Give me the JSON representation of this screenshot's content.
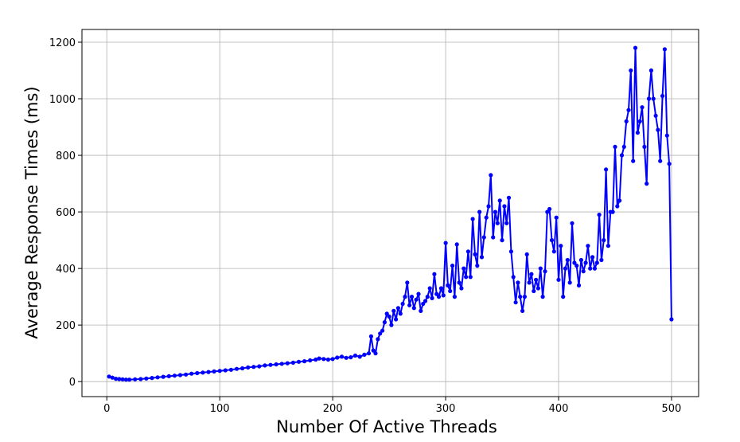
{
  "chart_data": {
    "type": "line",
    "title": "",
    "xlabel": "Number Of Active Threads",
    "ylabel": "Average Response Times (ms)",
    "xlim": [
      -22,
      524
    ],
    "ylim": [
      -53,
      1245
    ],
    "xticks": [
      0,
      100,
      200,
      300,
      400,
      500
    ],
    "yticks": [
      0,
      200,
      400,
      600,
      800,
      1000,
      1200
    ],
    "grid": true,
    "legend": "none",
    "series": [
      {
        "color": "#0000ff",
        "marker": "circle",
        "x": [
          2,
          5,
          8,
          11,
          14,
          17,
          20,
          25,
          30,
          35,
          40,
          45,
          50,
          55,
          60,
          65,
          70,
          75,
          80,
          85,
          90,
          95,
          100,
          105,
          110,
          115,
          120,
          125,
          130,
          135,
          140,
          145,
          150,
          155,
          160,
          165,
          170,
          175,
          180,
          185,
          188,
          192,
          196,
          200,
          204,
          208,
          212,
          216,
          220,
          224,
          228,
          232,
          234,
          236,
          238,
          240,
          242,
          244,
          246,
          248,
          250,
          252,
          254,
          256,
          258,
          260,
          262,
          264,
          266,
          268,
          270,
          272,
          274,
          276,
          278,
          280,
          282,
          284,
          286,
          288,
          290,
          292,
          294,
          296,
          298,
          300,
          302,
          304,
          306,
          308,
          310,
          312,
          314,
          316,
          318,
          320,
          322,
          324,
          326,
          328,
          330,
          332,
          334,
          336,
          338,
          340,
          342,
          344,
          346,
          348,
          350,
          352,
          354,
          356,
          358,
          360,
          362,
          364,
          366,
          368,
          370,
          372,
          374,
          376,
          378,
          380,
          382,
          384,
          386,
          388,
          390,
          392,
          394,
          396,
          398,
          400,
          402,
          404,
          406,
          408,
          410,
          412,
          414,
          416,
          418,
          420,
          422,
          424,
          426,
          428,
          430,
          432,
          434,
          436,
          438,
          440,
          442,
          444,
          446,
          448,
          450,
          452,
          454,
          456,
          458,
          460,
          462,
          464,
          466,
          468,
          470,
          472,
          474,
          476,
          478,
          480,
          482,
          484,
          486,
          488,
          490,
          492,
          494,
          496,
          498,
          500
        ],
        "y": [
          18,
          14,
          10,
          9,
          8,
          7,
          7,
          8,
          9,
          11,
          13,
          15,
          17,
          19,
          21,
          23,
          25,
          28,
          30,
          32,
          34,
          36,
          38,
          40,
          42,
          45,
          47,
          50,
          52,
          54,
          57,
          59,
          61,
          63,
          65,
          67,
          70,
          72,
          75,
          78,
          82,
          80,
          78,
          80,
          85,
          88,
          84,
          86,
          92,
          88,
          95,
          100,
          160,
          110,
          100,
          150,
          170,
          180,
          210,
          240,
          230,
          200,
          250,
          220,
          260,
          240,
          275,
          300,
          350,
          270,
          300,
          260,
          290,
          310,
          250,
          275,
          285,
          300,
          330,
          295,
          380,
          310,
          300,
          330,
          305,
          490,
          340,
          320,
          410,
          300,
          485,
          350,
          330,
          400,
          370,
          460,
          370,
          575,
          450,
          410,
          600,
          440,
          510,
          580,
          620,
          730,
          510,
          600,
          560,
          640,
          500,
          620,
          560,
          650,
          460,
          370,
          280,
          350,
          300,
          250,
          300,
          450,
          350,
          380,
          320,
          360,
          330,
          400,
          300,
          390,
          600,
          610,
          500,
          460,
          580,
          360,
          480,
          300,
          400,
          430,
          350,
          560,
          420,
          410,
          340,
          430,
          390,
          420,
          480,
          400,
          440,
          400,
          420,
          590,
          430,
          500,
          750,
          480,
          600,
          600,
          830,
          620,
          640,
          800,
          830,
          920,
          960,
          1100,
          780,
          1180,
          880,
          920,
          970,
          830,
          700,
          1000,
          1100,
          1000,
          940,
          890,
          780,
          1010,
          1175,
          870,
          770,
          220
        ]
      }
    ]
  }
}
